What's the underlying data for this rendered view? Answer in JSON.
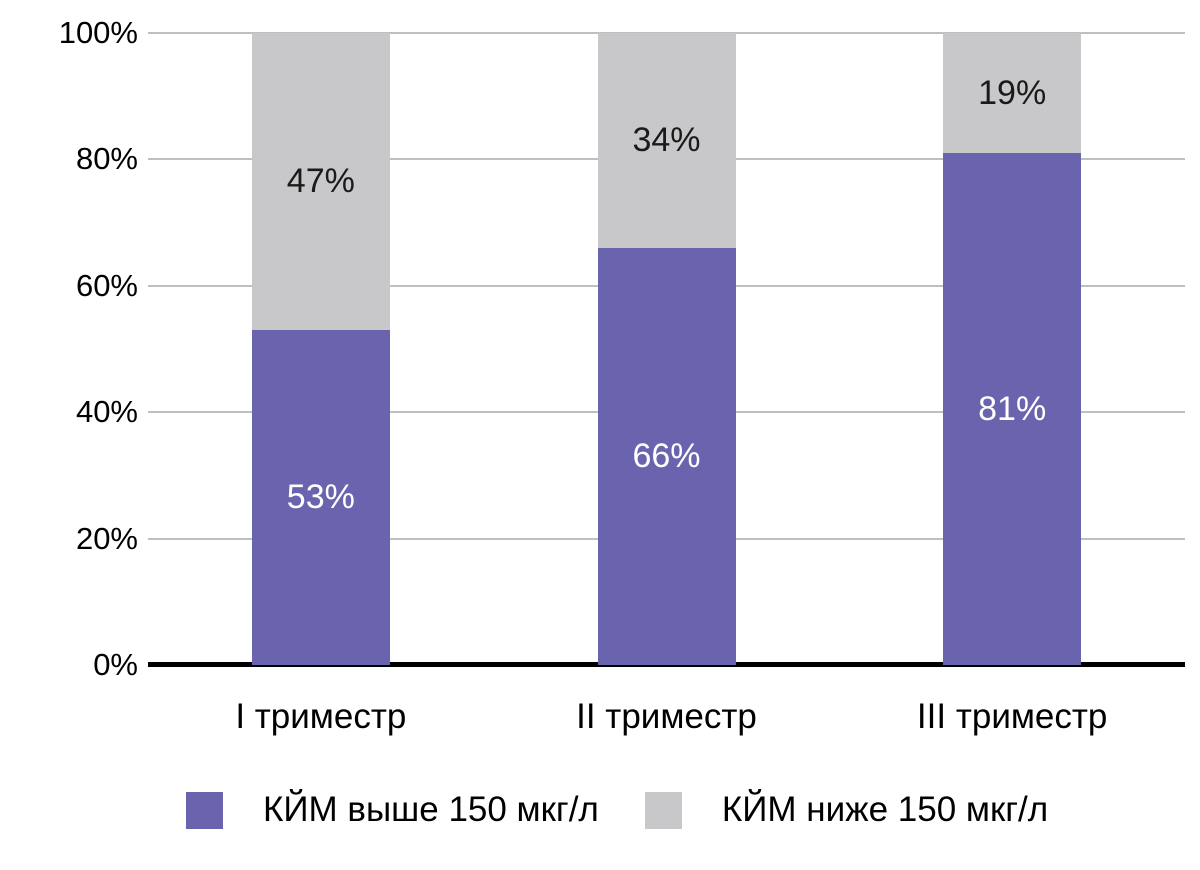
{
  "chart_data": {
    "type": "bar",
    "stacked": true,
    "orientation": "vertical",
    "title": "",
    "xlabel": "",
    "ylabel": "",
    "categories": [
      "I триместр",
      "II триместр",
      "III триместр"
    ],
    "series": [
      {
        "name": "КЙМ выше 150 мкг/л",
        "values": [
          53,
          66,
          81
        ],
        "color": "#6A63AE",
        "label_color": "#ffffff"
      },
      {
        "name": "КЙМ ниже 150 мкг/л",
        "values": [
          47,
          34,
          19
        ],
        "color": "#C8C8CA",
        "label_color": "#1a1a1a"
      }
    ],
    "y_ticks": [
      "0%",
      "20%",
      "40%",
      "60%",
      "80%",
      "100%"
    ],
    "ylim": [
      0,
      100
    ],
    "grid": true,
    "legend_position": "bottom",
    "data_label_format": "percent",
    "colors": {
      "gridline": "#bfbfbf",
      "baseline": "#000000",
      "background": "#ffffff",
      "tick_text": "#000000"
    }
  }
}
